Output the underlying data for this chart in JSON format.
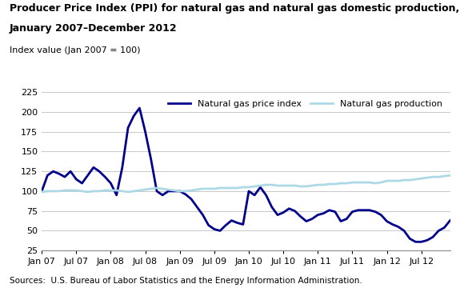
{
  "title_line1": "Producer Price Index (PPI) for natural gas and natural gas domestic production,",
  "title_line2": "January 2007–December 2012",
  "ylabel": "Index value (Jan 2007 = 100)",
  "source": "Sources:  U.S. Bureau of Labor Statistics and the Energy Information Administration.",
  "ylim": [
    25,
    225
  ],
  "yticks": [
    25,
    50,
    75,
    100,
    125,
    150,
    175,
    200,
    225
  ],
  "xtick_labels": [
    "Jan 07",
    "Jul 07",
    "Jan 08",
    "Jul 08",
    "Jan 09",
    "Jul 09",
    "Jan 10",
    "Jul 10",
    "Jan 11",
    "Jul 11",
    "Jan 12",
    "Jul 12"
  ],
  "price_color": "#00008B",
  "production_color": "#ADD8E6",
  "background_color": "#ffffff",
  "price_index": [
    100,
    120,
    125,
    122,
    118,
    125,
    115,
    110,
    120,
    130,
    125,
    118,
    110,
    95,
    130,
    180,
    195,
    205,
    175,
    140,
    100,
    95,
    100,
    100,
    100,
    96,
    90,
    80,
    70,
    57,
    52,
    50,
    57,
    63,
    60,
    58,
    100,
    95,
    105,
    95,
    80,
    70,
    73,
    78,
    75,
    68,
    62,
    65,
    70,
    72,
    76,
    74,
    62,
    65,
    74,
    76,
    76,
    76,
    74,
    70,
    62,
    58,
    55,
    50,
    40,
    36,
    36,
    38,
    42,
    50,
    54,
    63
  ],
  "production_index": [
    99,
    100,
    100,
    100,
    101,
    101,
    101,
    100,
    99,
    100,
    100,
    101,
    101,
    101,
    100,
    99,
    100,
    101,
    102,
    103,
    104,
    103,
    102,
    101,
    100,
    100,
    101,
    102,
    103,
    103,
    103,
    104,
    104,
    104,
    104,
    105,
    105,
    106,
    107,
    108,
    108,
    107,
    107,
    107,
    107,
    106,
    106,
    107,
    108,
    108,
    109,
    109,
    110,
    110,
    111,
    111,
    111,
    111,
    110,
    111,
    113,
    113,
    113,
    114,
    114,
    115,
    116,
    117,
    118,
    118,
    119,
    120
  ],
  "title_fontsize": 9,
  "label_fontsize": 8,
  "source_fontsize": 7.5,
  "legend_fontsize": 8
}
